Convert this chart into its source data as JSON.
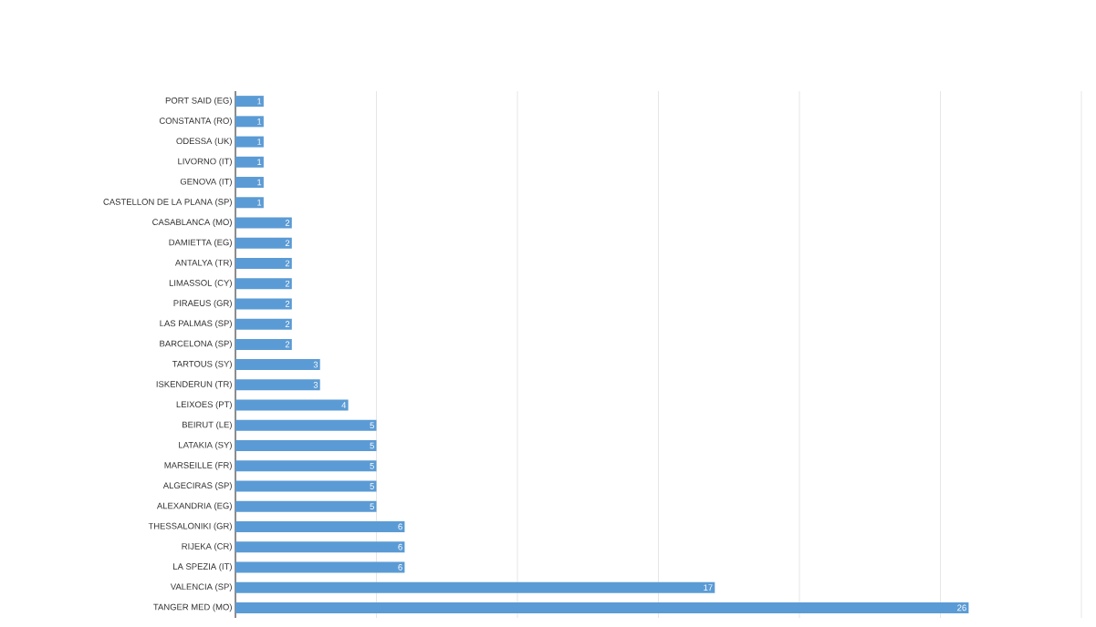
{
  "chart_data": {
    "type": "bar",
    "orientation": "horizontal",
    "categories": [
      "PORT SAID (EG)",
      "CONSTANTA (RO)",
      "ODESSA (UK)",
      "LIVORNO (IT)",
      "GENOVA (IT)",
      "CASTELLON DE LA PLANA (SP)",
      "CASABLANCA (MO)",
      "DAMIETTA (EG)",
      "ANTALYA (TR)",
      "LIMASSOL (CY)",
      "PIRAEUS (GR)",
      "LAS PALMAS (SP)",
      "BARCELONA (SP)",
      "TARTOUS (SY)",
      "ISKENDERUN (TR)",
      "LEIXOES (PT)",
      "BEIRUT (LE)",
      "LATAKIA (SY)",
      "MARSEILLE (FR)",
      "ALGECIRAS (SP)",
      "ALEXANDRIA (EG)",
      "THESSALONIKI (GR)",
      "RIJEKA (CR)",
      "LA SPEZIA (IT)",
      "VALENCIA (SP)",
      "TANGER MED (MO)"
    ],
    "values": [
      1,
      1,
      1,
      1,
      1,
      1,
      2,
      2,
      2,
      2,
      2,
      2,
      2,
      3,
      3,
      4,
      5,
      5,
      5,
      5,
      5,
      6,
      6,
      6,
      17,
      26
    ],
    "color": "#5b9bd5",
    "data_labels": true,
    "xlim": [
      0,
      30
    ],
    "xticks": [
      {
        "value": 5,
        "label": null
      },
      {
        "value": 10,
        "label": null
      },
      {
        "value": 15,
        "label": null
      },
      {
        "value": 20,
        "label": null
      },
      {
        "value": 25,
        "label": null
      },
      {
        "value": 30,
        "label": null
      }
    ],
    "grid": "x",
    "tick_labels": "y"
  }
}
